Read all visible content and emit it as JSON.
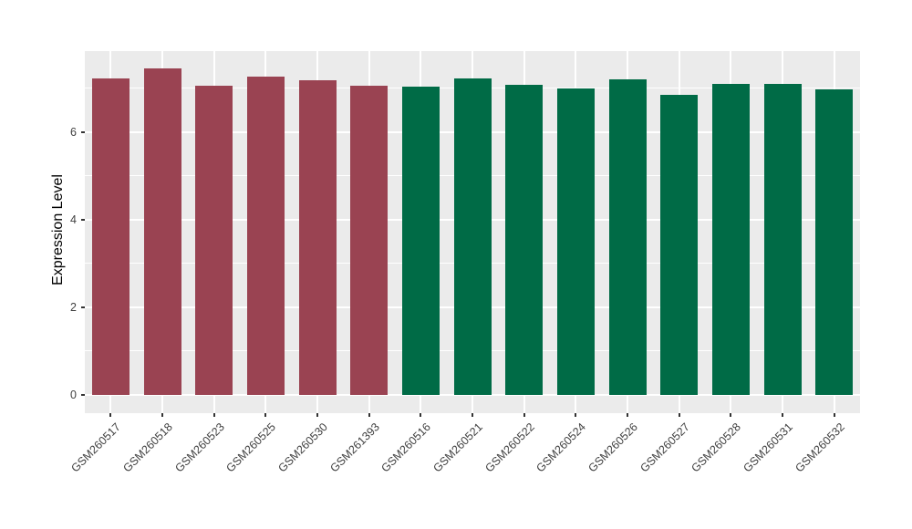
{
  "chart_data": {
    "type": "bar",
    "title": "",
    "xlabel": "",
    "ylabel": "Expression Level",
    "categories": [
      "GSM260517",
      "GSM260518",
      "GSM260523",
      "GSM260525",
      "GSM260530",
      "GSM261393",
      "GSM260516",
      "GSM260521",
      "GSM260522",
      "GSM260524",
      "GSM260526",
      "GSM260527",
      "GSM260528",
      "GSM260531",
      "GSM260532"
    ],
    "values": [
      7.23,
      7.46,
      7.07,
      7.26,
      7.19,
      7.05,
      7.03,
      7.23,
      7.09,
      6.99,
      7.21,
      6.85,
      7.11,
      7.11,
      6.97
    ],
    "groups": [
      "group1",
      "group1",
      "group1",
      "group1",
      "group1",
      "group1",
      "group2",
      "group2",
      "group2",
      "group2",
      "group2",
      "group2",
      "group2",
      "group2",
      "group2"
    ],
    "group_colors": {
      "group1": "#9A4352",
      "group2": "#006B46"
    },
    "ytick_labels": [
      "0",
      "2",
      "4",
      "6"
    ],
    "yticks": [
      0,
      2,
      4,
      6
    ],
    "minor_gridlines": [
      1,
      3,
      5,
      7
    ],
    "ylim": [
      0,
      7.85
    ],
    "grid": true,
    "legend_position": "none",
    "x_label_rotation_deg": 45,
    "colors": {
      "panel_background": "#EBEBEB",
      "gridline": "#FFFFFF",
      "tick_label": "#404040",
      "tick_mark": "#333333",
      "axis_title": "#000000",
      "figure_background": "#FFFFFF"
    }
  }
}
